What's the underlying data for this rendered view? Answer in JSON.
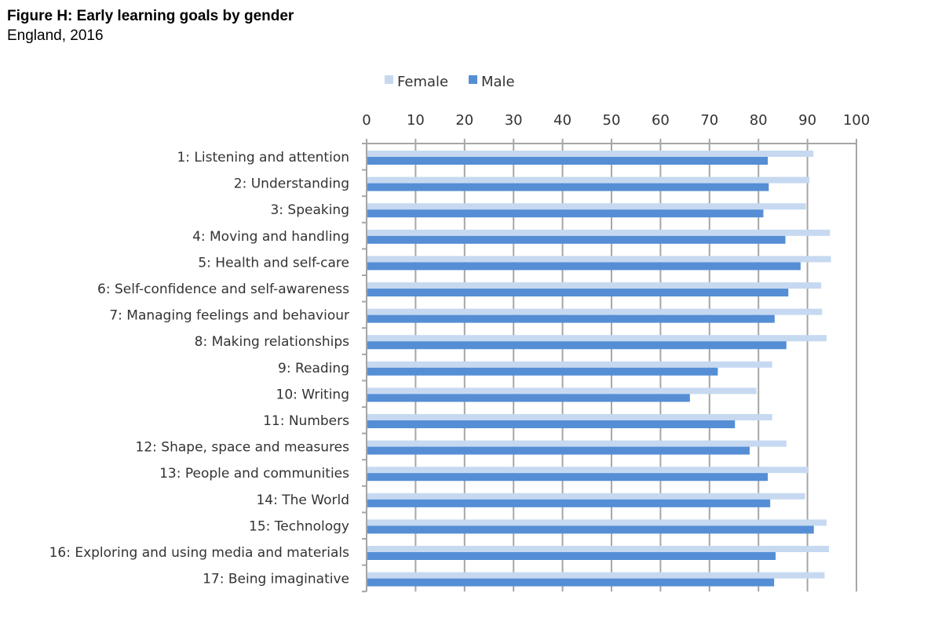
{
  "chart_data": {
    "type": "bar",
    "orientation": "horizontal",
    "title": "Figure H: Early learning goals by gender",
    "subtitle": "England, 2016",
    "xlabel": "",
    "ylabel": "",
    "xlim": [
      0,
      100
    ],
    "xticks": [
      0,
      10,
      20,
      30,
      40,
      50,
      60,
      70,
      80,
      90,
      100
    ],
    "grid": true,
    "legend_position": "top",
    "categories": [
      "1: Listening and attention",
      "2: Understanding",
      "3: Speaking",
      "4: Moving and handling",
      "5: Health and self-care",
      "6: Self-confidence and self-awareness",
      "7: Managing feelings and behaviour",
      "8: Making relationships",
      "9: Reading",
      "10: Writing",
      "11: Numbers",
      "12: Shape, space and measures",
      "13: People and communities",
      "14: The World",
      "15: Technology",
      "16: Exploring and using media and materials",
      "17: Being imaginative"
    ],
    "series": [
      {
        "name": "Female",
        "color": "#c6d9f1",
        "values": [
          91.2,
          90.4,
          89.7,
          94.6,
          94.8,
          92.8,
          93.0,
          93.9,
          82.8,
          79.6,
          82.8,
          85.7,
          90.1,
          89.5,
          93.9,
          94.4,
          93.5
        ]
      },
      {
        "name": "Male",
        "color": "#558ed5",
        "values": [
          81.9,
          82.1,
          81.0,
          85.5,
          88.6,
          86.1,
          83.3,
          85.7,
          71.7,
          66.0,
          75.2,
          78.2,
          81.9,
          82.4,
          91.3,
          83.5,
          83.2
        ]
      }
    ]
  }
}
